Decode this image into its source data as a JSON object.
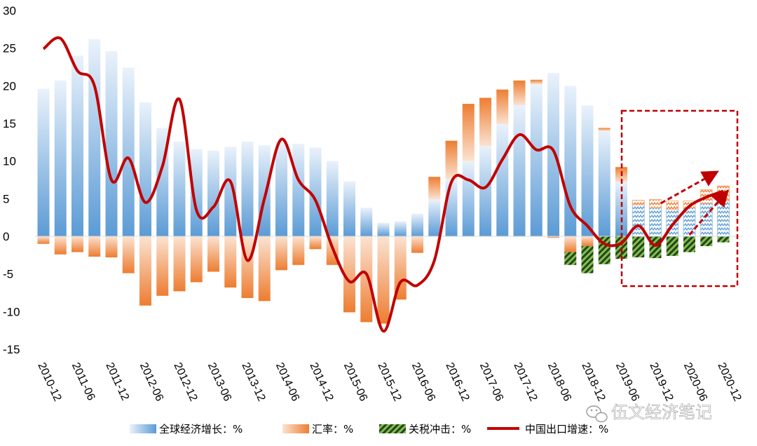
{
  "chart_data": {
    "type": "bar",
    "categories": [
      "2010-12",
      "2011-03",
      "2011-06",
      "2011-09",
      "2011-12",
      "2012-03",
      "2012-06",
      "2012-09",
      "2012-12",
      "2013-03",
      "2013-06",
      "2013-09",
      "2013-12",
      "2014-03",
      "2014-06",
      "2014-09",
      "2014-12",
      "2015-03",
      "2015-06",
      "2015-09",
      "2015-12",
      "2016-03",
      "2016-06",
      "2016-09",
      "2016-12",
      "2017-03",
      "2017-06",
      "2017-09",
      "2017-12",
      "2018-03",
      "2018-06",
      "2018-09",
      "2018-12",
      "2019-03",
      "2019-06",
      "2019-09",
      "2019-12",
      "2020-03",
      "2020-06",
      "2020-09",
      "2020-12"
    ],
    "tick_labels": [
      "2010-12",
      "2011-06",
      "2011-12",
      "2012-06",
      "2012-12",
      "2013-06",
      "2013-12",
      "2014-06",
      "2014-12",
      "2015-06",
      "2015-12",
      "2016-06",
      "2016-12",
      "2017-06",
      "2017-12",
      "2018-06",
      "2018-12",
      "2019-06",
      "2019-12",
      "2020-06",
      "2020-12"
    ],
    "yticks": [
      "30",
      "25",
      "20",
      "15",
      "10",
      "5",
      "0",
      "-5",
      "-10",
      "-15"
    ],
    "ylim": [
      -15,
      30
    ],
    "forecast_start_index": 35,
    "series": [
      {
        "name": "全球经济增长：%",
        "kind": "bar",
        "color": "#5b9bd5",
        "values": [
          19.6,
          20.7,
          24.0,
          26.2,
          24.6,
          22.4,
          17.8,
          14.4,
          12.6,
          11.6,
          11.4,
          11.9,
          12.6,
          12.1,
          12.6,
          12.3,
          11.8,
          10.0,
          7.3,
          3.8,
          1.8,
          2.0,
          3.0,
          4.9,
          7.6,
          10.0,
          12.0,
          14.9,
          17.4,
          20.2,
          21.7,
          20.0,
          17.4,
          14.0,
          7.2,
          4.2,
          3.8,
          3.6,
          3.8,
          4.4,
          4.7
        ]
      },
      {
        "name": "汇率：%",
        "kind": "bar",
        "color": "#ed7d31",
        "values": [
          -1.0,
          -2.4,
          -2.1,
          -2.7,
          -2.8,
          -4.9,
          -9.2,
          -7.9,
          -7.3,
          -6.1,
          -4.7,
          -6.8,
          -8.2,
          -8.6,
          -4.5,
          -3.8,
          -1.7,
          -3.8,
          -10.1,
          -11.4,
          -11.6,
          -8.4,
          -2.2,
          3.0,
          5.1,
          7.6,
          6.4,
          4.6,
          3.3,
          0.6,
          -0.2,
          -2.1,
          -1.3,
          0.4,
          2.0,
          0.6,
          1.1,
          1.1,
          0.9,
          1.8,
          2.0
        ]
      },
      {
        "name": "关税冲击：%",
        "kind": "bar",
        "color": "#4e8a2e",
        "values": [
          0,
          0,
          0,
          0,
          0,
          0,
          0,
          0,
          0,
          0,
          0,
          0,
          0,
          0,
          0,
          0,
          0,
          0,
          0,
          0,
          0,
          0,
          0,
          0,
          0,
          0,
          0,
          0,
          0,
          0,
          0,
          -1.7,
          -3.6,
          -3.7,
          -3.0,
          -2.8,
          -2.9,
          -2.6,
          -2.1,
          -1.3,
          -0.8
        ]
      },
      {
        "name": "中国出口增速：%",
        "kind": "line",
        "color": "#c00000",
        "values": [
          24.9,
          26.3,
          22.0,
          20.0,
          7.5,
          10.4,
          4.5,
          9.3,
          18.2,
          3.5,
          3.9,
          7.3,
          -3.2,
          5.0,
          12.9,
          7.5,
          4.8,
          -1.5,
          -6.0,
          -5.0,
          -12.6,
          -6.1,
          -6.5,
          -3.2,
          7.2,
          7.5,
          6.5,
          10.2,
          13.5,
          11.5,
          11.4,
          4.0,
          1.4,
          -1.0,
          -0.9,
          1.4,
          -1.2,
          1.5,
          4.0,
          5.2,
          6.0
        ]
      }
    ],
    "xlabel": "",
    "ylabel": "",
    "grid": false,
    "legend_position": "bottom"
  },
  "watermark": {
    "text": "伍文经济笔记",
    "icon": "wechat-icon"
  }
}
